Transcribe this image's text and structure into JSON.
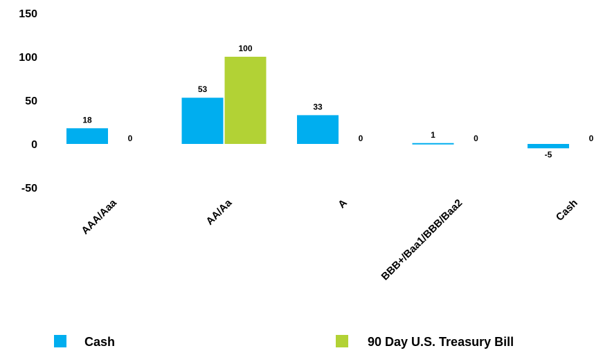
{
  "chart_data": {
    "type": "bar",
    "categories": [
      "AAA/Aaa",
      "AA/Aa",
      "A",
      "BBB+/Baa1/BBB/Baa2",
      "Cash"
    ],
    "series": [
      {
        "name": "Cash",
        "values": [
          18,
          53,
          33,
          1,
          -5
        ],
        "color": "#00aeef"
      },
      {
        "name": "90 Day U.S. Treasury Bill",
        "values": [
          0,
          100,
          0,
          0,
          0
        ],
        "color": "#b2d235"
      }
    ],
    "data_labels": {
      "Cash": [
        "18",
        "53",
        "33",
        "1",
        "-5"
      ],
      "90 Day U.S. Treasury Bill": [
        "0",
        "100",
        "0",
        "0",
        "0"
      ]
    },
    "yticks": [
      150,
      100,
      50,
      0,
      -50
    ],
    "ylim": [
      -50,
      150
    ],
    "grid": false,
    "legend_position": "bottom",
    "title": "",
    "xlabel": "",
    "ylabel": ""
  }
}
